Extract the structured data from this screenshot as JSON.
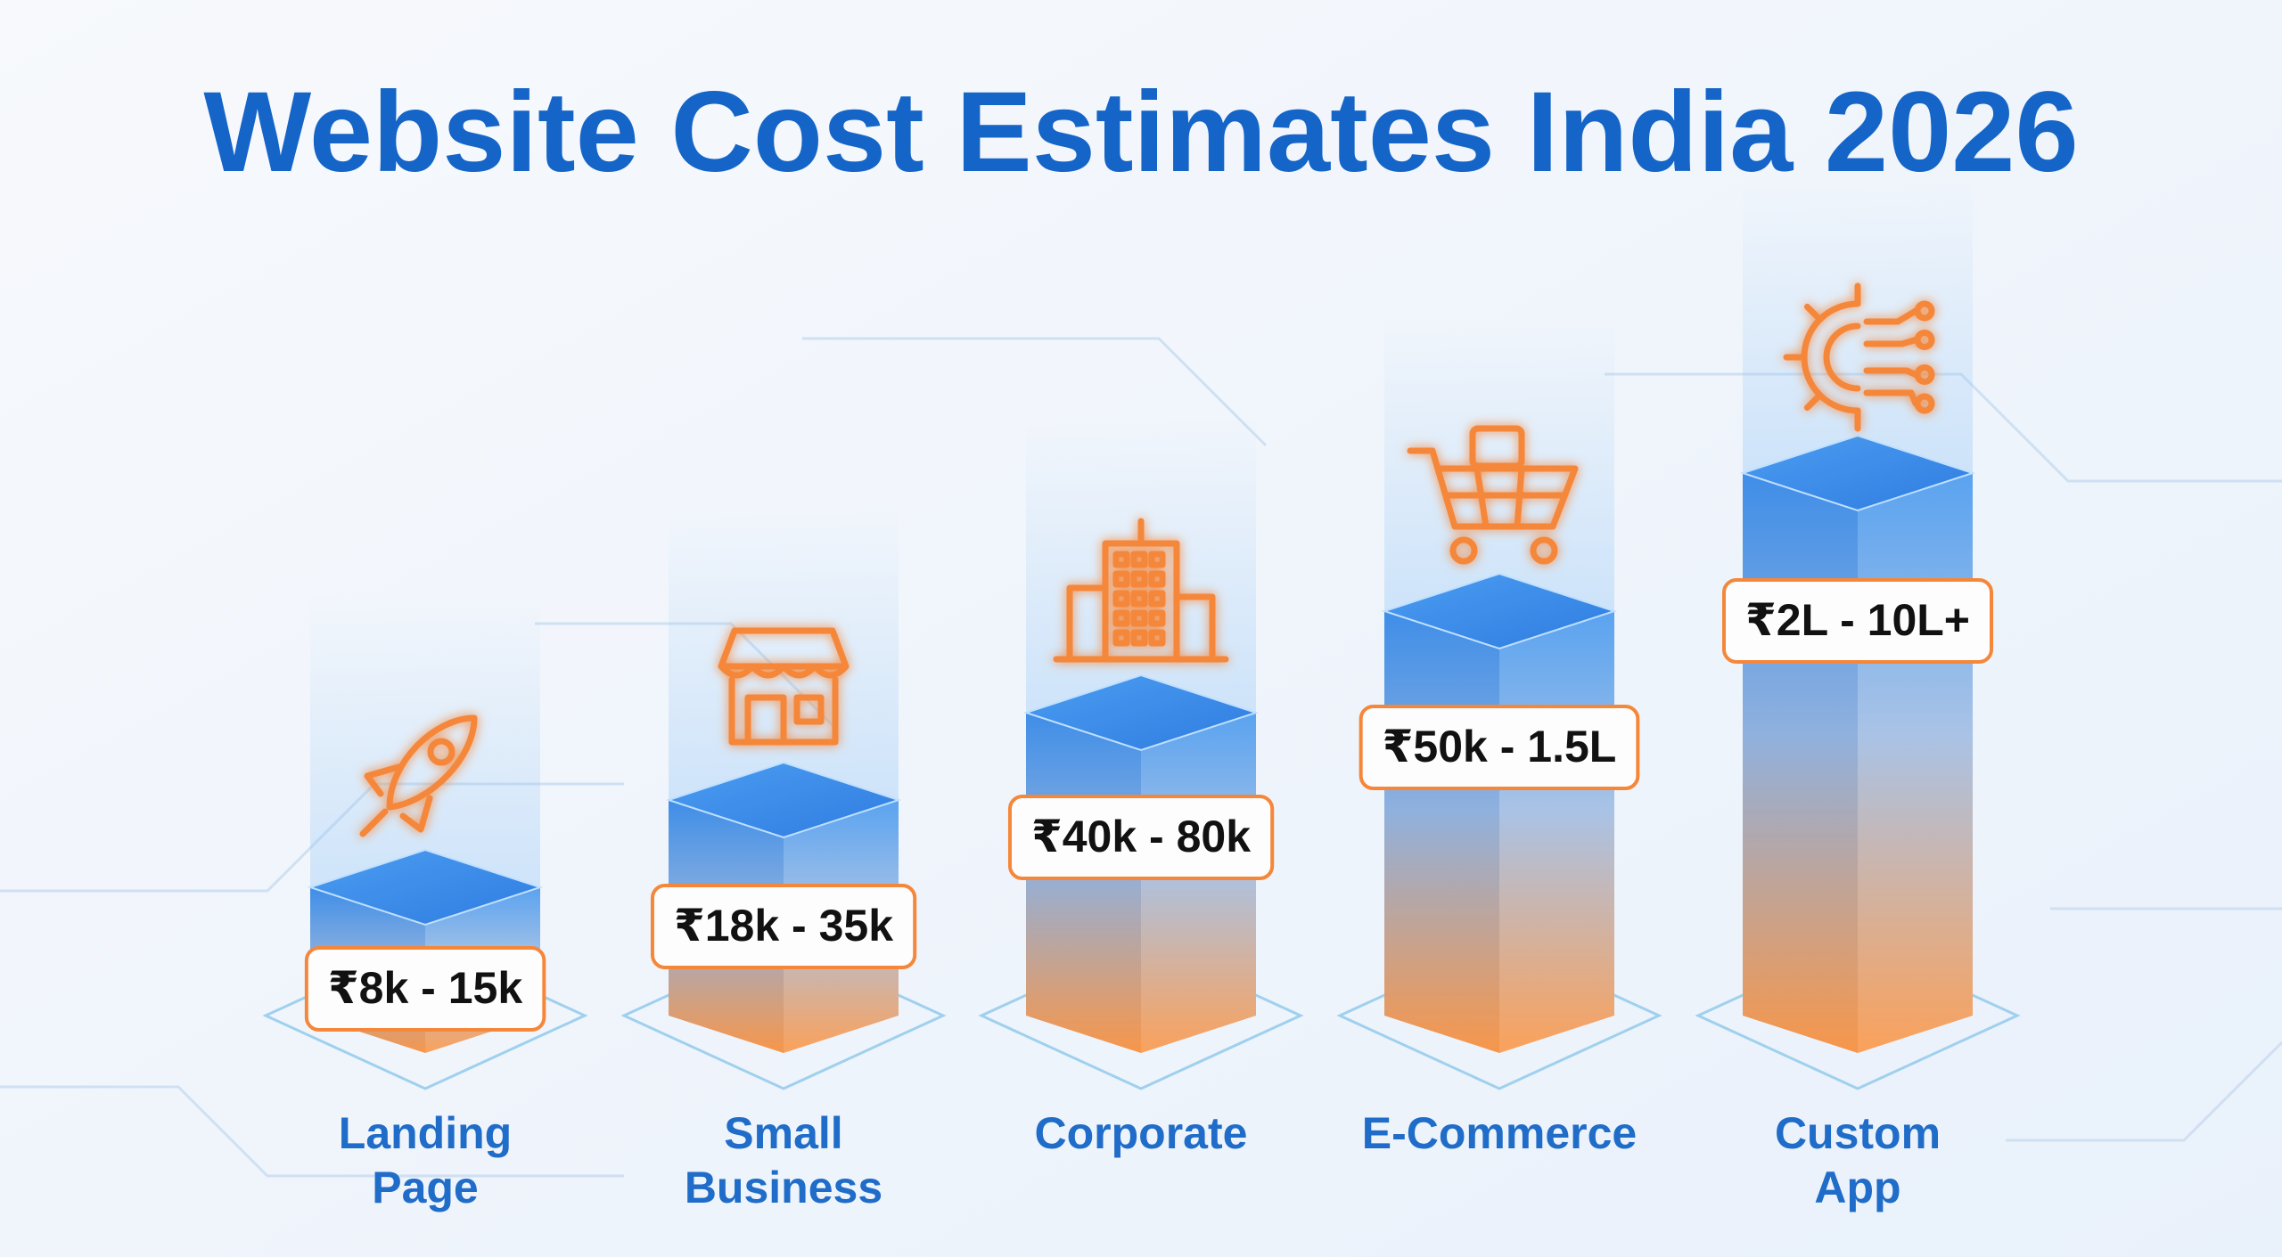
{
  "title": "Website Cost Estimates India 2026",
  "items": [
    {
      "label": [
        "Landing",
        "Page"
      ],
      "price": "₹8k - 15k"
    },
    {
      "label": [
        "Small",
        "Business"
      ],
      "price": "₹18k - 35k"
    },
    {
      "label": [
        "Corporate"
      ],
      "price": "₹40k - 80k"
    },
    {
      "label": [
        "E-Commerce"
      ],
      "price": "₹50k - 1.5L"
    },
    {
      "label": [
        "Custom",
        "App"
      ],
      "price": "₹2L - 10L+"
    }
  ]
}
